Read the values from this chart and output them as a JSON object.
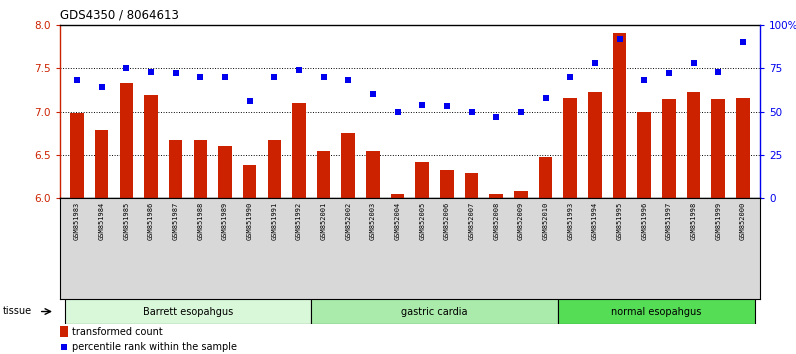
{
  "title": "GDS4350 / 8064613",
  "samples": [
    "GSM851983",
    "GSM851984",
    "GSM851985",
    "GSM851986",
    "GSM851987",
    "GSM851988",
    "GSM851989",
    "GSM851990",
    "GSM851991",
    "GSM851992",
    "GSM852001",
    "GSM852002",
    "GSM852003",
    "GSM852004",
    "GSM852005",
    "GSM852006",
    "GSM852007",
    "GSM852008",
    "GSM852009",
    "GSM852010",
    "GSM851993",
    "GSM851994",
    "GSM851995",
    "GSM851996",
    "GSM851997",
    "GSM851998",
    "GSM851999",
    "GSM852000"
  ],
  "bar_values": [
    6.98,
    6.79,
    7.33,
    7.19,
    6.67,
    6.67,
    6.6,
    6.38,
    6.67,
    7.1,
    6.54,
    6.75,
    6.54,
    6.05,
    6.42,
    6.33,
    6.29,
    6.05,
    6.08,
    6.48,
    7.16,
    7.22,
    7.9,
    7.0,
    7.15,
    7.22,
    7.14,
    7.16
  ],
  "percentile_values": [
    68,
    64,
    75,
    73,
    72,
    70,
    70,
    56,
    70,
    74,
    70,
    68,
    60,
    50,
    54,
    53,
    50,
    47,
    50,
    58,
    70,
    78,
    92,
    68,
    72,
    78,
    73,
    90
  ],
  "groups": [
    {
      "label": "Barrett esopahgus",
      "start": 0,
      "end": 10,
      "color": "#d9f7d9"
    },
    {
      "label": "gastric cardia",
      "start": 10,
      "end": 20,
      "color": "#aaeaaa"
    },
    {
      "label": "normal esopahgus",
      "start": 20,
      "end": 28,
      "color": "#55dd55"
    }
  ],
  "ylim_left": [
    6.0,
    8.0
  ],
  "ylim_right": [
    0,
    100
  ],
  "yticks_left": [
    6.0,
    6.5,
    7.0,
    7.5,
    8.0
  ],
  "yticks_right": [
    0,
    25,
    50,
    75,
    100
  ],
  "ytick_labels_right": [
    "0",
    "25",
    "50",
    "75",
    "100%"
  ],
  "bar_color": "#cc2200",
  "dot_color": "#0000ee",
  "bar_bottom": 6.0,
  "legend_bar_label": "transformed count",
  "legend_dot_label": "percentile rank within the sample",
  "tissue_label": "tissue"
}
